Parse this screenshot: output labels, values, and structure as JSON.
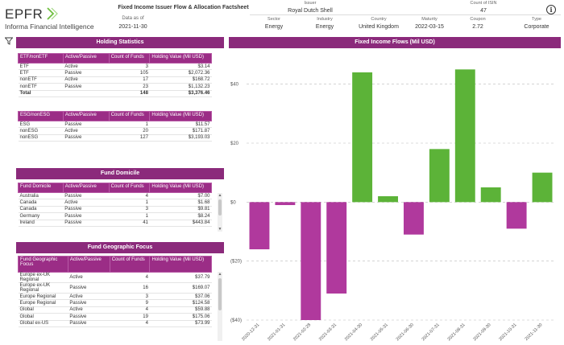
{
  "header": {
    "logo_text": "EPFR",
    "logo_sub": "Informa Financial Intelligence",
    "report_title": "Fixed Income Issuer Flow & Allocation Factsheet",
    "data_as_of_label": "Data as of",
    "data_as_of_value": "2021-11-30",
    "issuer_label": "Issuer",
    "issuer_value": "Royal Dutch Shell",
    "isin_count_label": "Count of ISIN",
    "isin_count_value": "47",
    "sector_label": "Sector",
    "sector_value": "Energy",
    "industry_label": "Industry",
    "industry_value": "Energy",
    "country_label": "Country",
    "country_value": "United Kingdom",
    "maturity_label": "Maturity",
    "maturity_value": "2022-03-15",
    "coupon_label": "Coupon",
    "coupon_value": "2.72",
    "type_label": "Type",
    "type_value": "Corporate",
    "info_icon_glyph": "i"
  },
  "holding_statistics": {
    "title": "Holding Statistics",
    "etf_table": {
      "headers": [
        "ETF/nonETF",
        "Active/Passive",
        "Count of Funds",
        "Holding Value (Mil USD)"
      ],
      "rows": [
        [
          "ETF",
          "Active",
          "3",
          "$3.14"
        ],
        [
          "ETF",
          "Passive",
          "105",
          "$2,072.36"
        ],
        [
          "nonETF",
          "Active",
          "17",
          "$168.72"
        ],
        [
          "nonETF",
          "Passive",
          "23",
          "$1,132.23"
        ]
      ],
      "total": [
        "Total",
        "",
        "148",
        "$3,376.46"
      ]
    },
    "esg_table": {
      "headers": [
        "ESG/nonESG",
        "Active/Passive",
        "Count of Funds",
        "Holding Value (Mil USD)"
      ],
      "rows": [
        [
          "ESG",
          "Passive",
          "1",
          "$11.57"
        ],
        [
          "nonESG",
          "Active",
          "20",
          "$171.87"
        ],
        [
          "nonESG",
          "Passive",
          "127",
          "$3,193.03"
        ]
      ]
    }
  },
  "fund_domicile": {
    "title": "Fund Domicile",
    "headers": [
      "Fund Domicile",
      "Active/Passive",
      "Count of Funds",
      "Holding Value (Mil USD)"
    ],
    "rows": [
      [
        "Australia",
        "Passive",
        "4",
        "$7.00"
      ],
      [
        "Canada",
        "Active",
        "1",
        "$1.68"
      ],
      [
        "Canada",
        "Passive",
        "3",
        "$9.81"
      ],
      [
        "Germany",
        "Passive",
        "1",
        "$8.24"
      ],
      [
        "Ireland",
        "Passive",
        "41",
        "$443.84"
      ]
    ]
  },
  "fund_geo_focus": {
    "title": "Fund Geographic Focus",
    "headers": [
      "Fund Geographic Focus",
      "Active/Passive",
      "Count of Funds",
      "Holding Value (Mil USD)"
    ],
    "rows": [
      [
        "Europe ex-UK Regional",
        "Active",
        "4",
        "$37.79"
      ],
      [
        "Europe ex-UK Regional",
        "Passive",
        "16",
        "$169.07"
      ],
      [
        "Europe Regional",
        "Active",
        "3",
        "$37.06"
      ],
      [
        "Europe Regional",
        "Passive",
        "9",
        "$124.58"
      ],
      [
        "Global",
        "Active",
        "4",
        "$59.88"
      ],
      [
        "Global",
        "Passive",
        "19",
        "$175.06"
      ],
      [
        "Global ex-US",
        "Passive",
        "4",
        "$73.99"
      ]
    ]
  },
  "scroll_up_glyph": "▲",
  "scroll_down_glyph": "▼",
  "colors": {
    "header_purple": "#8b2a7b",
    "positive": "#5cb338",
    "negative": "#b0399d"
  },
  "chart_data": {
    "type": "bar",
    "title": "Fixed Income Flows (Mil USD)",
    "xlabel": "",
    "ylabel": "",
    "ylim": [
      -40,
      50
    ],
    "yticks": [
      -40,
      -20,
      0,
      20,
      40
    ],
    "ytick_labels": [
      "($40)",
      "($20)",
      "$0",
      "$20",
      "$40"
    ],
    "grid": true,
    "categories": [
      "2020-12-31",
      "2021-01-31",
      "2021-02-28",
      "2021-03-31",
      "2021-04-30",
      "2021-05-31",
      "2021-06-30",
      "2021-07-31",
      "2021-08-31",
      "2021-09-30",
      "2021-10-31",
      "2021-11-30"
    ],
    "values": [
      -16,
      -1,
      -40,
      -31,
      44,
      2,
      -11,
      18,
      45,
      5,
      -9,
      10
    ]
  }
}
